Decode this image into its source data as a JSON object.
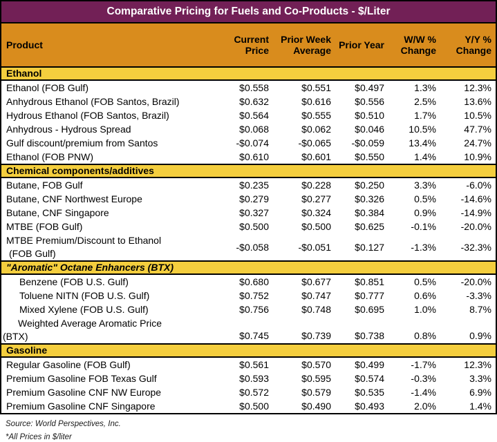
{
  "title": "Comparative Pricing for Fuels and Co-Products - $/Liter",
  "colors": {
    "title_bg": "#722056",
    "title_text": "#FFFFFF",
    "header_bg": "#D98C1D",
    "section_bg": "#F4CE3E",
    "border": "#000000"
  },
  "columns": [
    "Product",
    "Current Price",
    "Prior Week Average",
    "Prior Year",
    "W/W % Change",
    "Y/Y % Change"
  ],
  "sections": [
    {
      "name": "Ethanol",
      "italic": false,
      "indent_rows": false,
      "rows": [
        {
          "product": "Ethanol (FOB Gulf)",
          "current": "$0.558",
          "prior_week": "$0.551",
          "prior_year": "$0.497",
          "ww_change": "1.3%",
          "yy_change": "12.3%"
        },
        {
          "product": "Anhydrous Ethanol (FOB Santos, Brazil)",
          "current": "$0.632",
          "prior_week": "$0.616",
          "prior_year": "$0.556",
          "ww_change": "2.5%",
          "yy_change": "13.6%"
        },
        {
          "product": "Hydrous Ethanol (FOB Santos, Brazil)",
          "current": "$0.564",
          "prior_week": "$0.555",
          "prior_year": "$0.510",
          "ww_change": "1.7%",
          "yy_change": "10.5%"
        },
        {
          "product": "Anhydrous - Hydrous Spread",
          "current": "$0.068",
          "prior_week": "$0.062",
          "prior_year": "$0.046",
          "ww_change": "10.5%",
          "yy_change": "47.7%"
        },
        {
          "product": "Gulf discount/premium from Santos",
          "current": "-$0.074",
          "prior_week": "-$0.065",
          "prior_year": "-$0.059",
          "ww_change": "13.4%",
          "yy_change": "24.7%"
        },
        {
          "product": "Ethanol (FOB PNW)",
          "current": "$0.610",
          "prior_week": "$0.601",
          "prior_year": "$0.550",
          "ww_change": "1.4%",
          "yy_change": "10.9%"
        }
      ]
    },
    {
      "name": "Chemical components/additives",
      "italic": false,
      "indent_rows": false,
      "rows": [
        {
          "product": "Butane, FOB Gulf",
          "current": "$0.235",
          "prior_week": "$0.228",
          "prior_year": "$0.250",
          "ww_change": "3.3%",
          "yy_change": "-6.0%"
        },
        {
          "product": "Butane, CNF Northwest Europe",
          "current": "$0.279",
          "prior_week": "$0.277",
          "prior_year": "$0.326",
          "ww_change": "0.5%",
          "yy_change": "-14.6%"
        },
        {
          "product": "Butane, CNF Singapore",
          "current": "$0.327",
          "prior_week": "$0.324",
          "prior_year": "$0.384",
          "ww_change": "0.9%",
          "yy_change": "-14.9%"
        },
        {
          "product": "MTBE (FOB Gulf)",
          "current": "$0.500",
          "prior_week": "$0.500",
          "prior_year": "$0.625",
          "ww_change": "-0.1%",
          "yy_change": "-20.0%"
        },
        {
          "product": "MTBE Premium/Discount to Ethanol",
          "product_line2": "(FOB Gulf)",
          "wrap": "center",
          "current": "-$0.058",
          "prior_week": "-$0.051",
          "prior_year": "$0.127",
          "ww_change": "-1.3%",
          "yy_change": "-32.3%"
        }
      ]
    },
    {
      "name": "\"Aromatic\" Octane Enhancers (BTX)",
      "italic": true,
      "indent_rows": true,
      "rows": [
        {
          "product": "Benzene (FOB U.S. Gulf)",
          "current": "$0.680",
          "prior_week": "$0.677",
          "prior_year": "$0.851",
          "ww_change": "0.5%",
          "yy_change": "-20.0%"
        },
        {
          "product": "Toluene NITN (FOB U.S. Gulf)",
          "current": "$0.752",
          "prior_week": "$0.747",
          "prior_year": "$0.777",
          "ww_change": "0.6%",
          "yy_change": "-3.3%"
        },
        {
          "product": "Mixed Xylene (FOB U.S. Gulf)",
          "current": "$0.756",
          "prior_week": "$0.748",
          "prior_year": "$0.695",
          "ww_change": "1.0%",
          "yy_change": "8.7%"
        },
        {
          "product": "Weighted Average Aromatic Price",
          "product_line2": "(BTX)",
          "wrap": "bottom",
          "current": "$0.745",
          "prior_week": "$0.739",
          "prior_year": "$0.738",
          "ww_change": "0.8%",
          "yy_change": "0.9%"
        }
      ]
    },
    {
      "name": "Gasoline",
      "italic": false,
      "indent_rows": false,
      "rows": [
        {
          "product": "Regular Gasoline (FOB Gulf)",
          "current": "$0.561",
          "prior_week": "$0.570",
          "prior_year": "$0.499",
          "ww_change": "-1.7%",
          "yy_change": "12.3%"
        },
        {
          "product": "Premium Gasoline FOB Texas Gulf",
          "current": "$0.593",
          "prior_week": "$0.595",
          "prior_year": "$0.574",
          "ww_change": "-0.3%",
          "yy_change": "3.3%"
        },
        {
          "product": "Premium Gasoline CNF NW Europe",
          "current": "$0.572",
          "prior_week": "$0.579",
          "prior_year": "$0.535",
          "ww_change": "-1.4%",
          "yy_change": "6.9%"
        },
        {
          "product": "Premium Gasoline CNF Singapore",
          "current": "$0.500",
          "prior_week": "$0.490",
          "prior_year": "$0.493",
          "ww_change": "2.0%",
          "yy_change": "1.4%"
        }
      ]
    }
  ],
  "footer": {
    "source": "Source: World Perspectives, Inc.",
    "note": "*All Prices in $/liter"
  }
}
